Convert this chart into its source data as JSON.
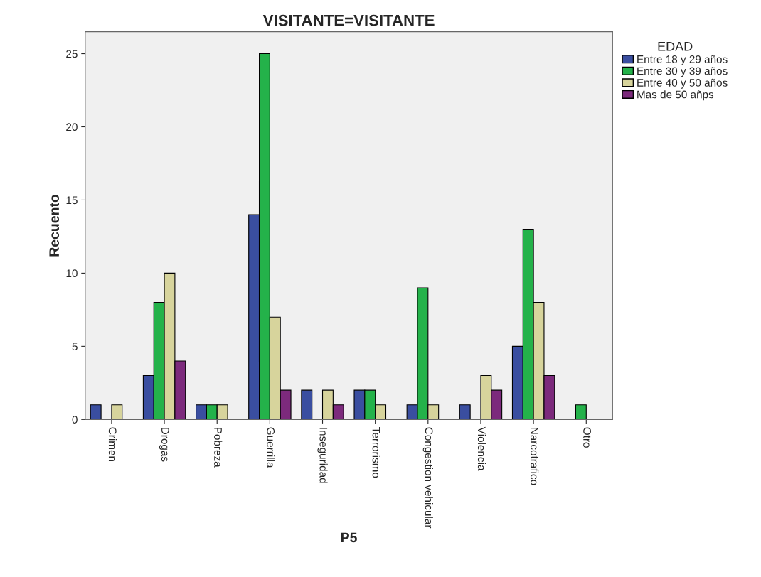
{
  "chart_data": {
    "type": "bar",
    "title": "VISITANTE=VISITANTE",
    "xlabel": "P5",
    "ylabel": "Recuento",
    "legend_title": "EDAD",
    "legend": "right",
    "categories": [
      "Crimen",
      "Drogas",
      "Pobreza",
      "Guerrilla",
      "Inseguridad",
      "Terrorismo",
      "Congestion vehicular",
      "Violencia",
      "Narcotrafico",
      "Otro"
    ],
    "series": [
      {
        "name": "Entre 18 y 29 años",
        "color": "#3a4ea0",
        "values": [
          1,
          3,
          1,
          14,
          2,
          2,
          1,
          1,
          5,
          null
        ]
      },
      {
        "name": "Entre 30 y 39 años",
        "color": "#24b24a",
        "values": [
          null,
          8,
          1,
          25,
          null,
          2,
          9,
          null,
          13,
          1
        ]
      },
      {
        "name": "Entre 40 y 50 años",
        "color": "#d7d49c",
        "values": [
          1,
          10,
          1,
          7,
          2,
          1,
          1,
          3,
          8,
          null
        ]
      },
      {
        "name": "Mas de 50 añps",
        "color": "#7c2a7c",
        "values": [
          null,
          4,
          null,
          2,
          1,
          null,
          null,
          2,
          3,
          null
        ]
      }
    ],
    "ylim": [
      0,
      26.5
    ],
    "yticks": [
      0,
      5,
      10,
      15,
      20,
      25
    ],
    "grid": false
  }
}
